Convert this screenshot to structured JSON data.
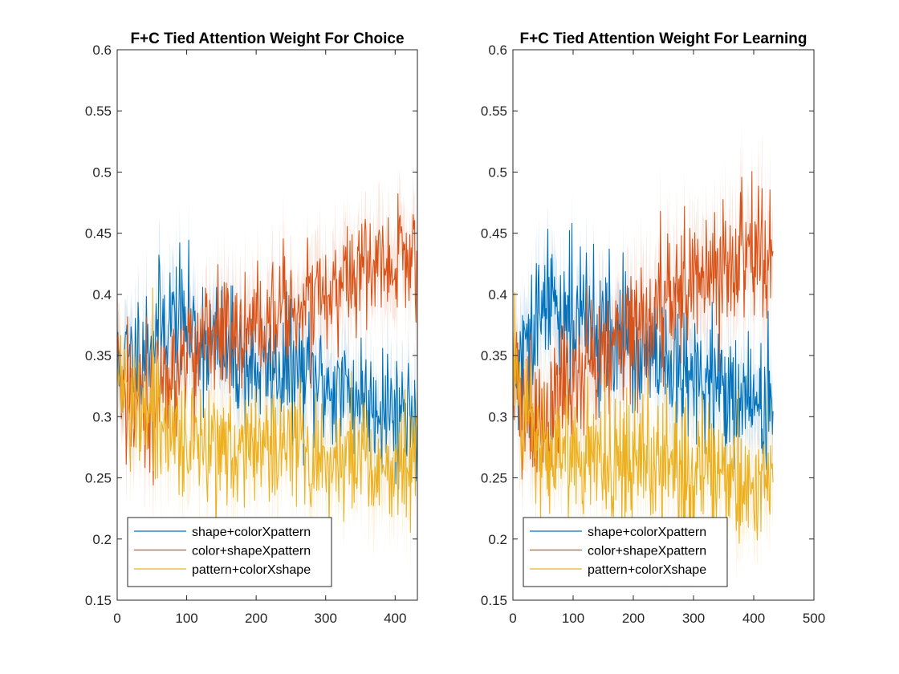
{
  "chart_data": [
    {
      "type": "line",
      "title": "F+C Tied Attention Weight For Choice",
      "xlabel": "",
      "ylabel": "",
      "xlim": [
        0,
        432
      ],
      "ylim": [
        0.15,
        0.6
      ],
      "xticks": [
        0,
        100,
        200,
        300,
        400
      ],
      "yticks": [
        0.15,
        0.2,
        0.25,
        0.3,
        0.35,
        0.4,
        0.45,
        0.5,
        0.55,
        0.6
      ],
      "x_end": 432,
      "grid": false,
      "legend_position": "bottom-left",
      "noise_seed": 11,
      "series": [
        {
          "name": "shape+colorXpattern",
          "color": "#0072BD",
          "noise": 0.026,
          "band": 0.028,
          "x": [
            0,
            10,
            20,
            30,
            40,
            50,
            60,
            70,
            80,
            90,
            100,
            120,
            140,
            160,
            180,
            200,
            220,
            240,
            260,
            280,
            300,
            320,
            340,
            360,
            380,
            400,
            420,
            432
          ],
          "y": [
            0.335,
            0.34,
            0.345,
            0.352,
            0.358,
            0.365,
            0.372,
            0.378,
            0.382,
            0.38,
            0.375,
            0.365,
            0.358,
            0.352,
            0.345,
            0.34,
            0.338,
            0.338,
            0.336,
            0.33,
            0.326,
            0.322,
            0.318,
            0.315,
            0.312,
            0.305,
            0.305,
            0.32
          ]
        },
        {
          "name": "color+shapeXpattern",
          "color": "#D95319",
          "noise": 0.026,
          "band": 0.03,
          "x": [
            0,
            10,
            20,
            30,
            40,
            50,
            60,
            70,
            80,
            90,
            100,
            120,
            140,
            160,
            180,
            200,
            220,
            240,
            260,
            280,
            300,
            320,
            340,
            360,
            380,
            400,
            420,
            432
          ],
          "y": [
            0.34,
            0.33,
            0.32,
            0.315,
            0.312,
            0.315,
            0.32,
            0.328,
            0.335,
            0.342,
            0.35,
            0.36,
            0.368,
            0.372,
            0.378,
            0.382,
            0.385,
            0.39,
            0.392,
            0.398,
            0.405,
            0.41,
            0.412,
            0.418,
            0.425,
            0.43,
            0.425,
            0.43
          ]
        },
        {
          "name": "pattern+colorXshape",
          "color": "#EDB120",
          "noise": 0.024,
          "band": 0.03,
          "x": [
            0,
            10,
            20,
            30,
            40,
            50,
            60,
            70,
            80,
            90,
            100,
            120,
            140,
            160,
            180,
            200,
            220,
            240,
            260,
            280,
            300,
            320,
            340,
            360,
            380,
            400,
            420,
            432
          ],
          "y": [
            0.33,
            0.322,
            0.312,
            0.305,
            0.3,
            0.295,
            0.29,
            0.288,
            0.286,
            0.284,
            0.282,
            0.28,
            0.278,
            0.277,
            0.276,
            0.275,
            0.274,
            0.272,
            0.27,
            0.27,
            0.268,
            0.266,
            0.264,
            0.262,
            0.26,
            0.262,
            0.262,
            0.27
          ]
        }
      ]
    },
    {
      "type": "line",
      "title": "F+C Tied Attention Weight For Learning",
      "xlabel": "",
      "ylabel": "",
      "xlim": [
        0,
        500
      ],
      "ylim": [
        0.15,
        0.6
      ],
      "xticks": [
        0,
        100,
        200,
        300,
        400,
        500
      ],
      "yticks": [
        0.15,
        0.2,
        0.25,
        0.3,
        0.35,
        0.4,
        0.45,
        0.5,
        0.55,
        0.6
      ],
      "x_end": 432,
      "grid": false,
      "legend_position": "bottom-left",
      "noise_seed": 29,
      "series": [
        {
          "name": "shape+colorXpattern",
          "color": "#0072BD",
          "noise": 0.028,
          "band": 0.03,
          "x": [
            0,
            10,
            20,
            30,
            40,
            50,
            60,
            70,
            80,
            90,
            100,
            120,
            140,
            160,
            180,
            200,
            220,
            240,
            260,
            280,
            300,
            320,
            340,
            360,
            380,
            400,
            420,
            432
          ],
          "y": [
            0.33,
            0.335,
            0.345,
            0.36,
            0.375,
            0.385,
            0.392,
            0.395,
            0.392,
            0.388,
            0.383,
            0.378,
            0.372,
            0.368,
            0.362,
            0.355,
            0.348,
            0.342,
            0.338,
            0.333,
            0.33,
            0.326,
            0.322,
            0.318,
            0.315,
            0.312,
            0.31,
            0.3
          ]
        },
        {
          "name": "color+shapeXpattern",
          "color": "#D95319",
          "noise": 0.028,
          "band": 0.035,
          "x": [
            0,
            10,
            20,
            30,
            40,
            50,
            60,
            70,
            80,
            90,
            100,
            120,
            140,
            160,
            180,
            200,
            220,
            240,
            260,
            280,
            300,
            320,
            340,
            360,
            380,
            400,
            420,
            432
          ],
          "y": [
            0.335,
            0.325,
            0.315,
            0.305,
            0.3,
            0.3,
            0.305,
            0.312,
            0.32,
            0.328,
            0.335,
            0.345,
            0.352,
            0.36,
            0.368,
            0.375,
            0.385,
            0.395,
            0.402,
            0.408,
            0.412,
            0.418,
            0.422,
            0.428,
            0.435,
            0.44,
            0.438,
            0.44
          ]
        },
        {
          "name": "pattern+colorXshape",
          "color": "#EDB120",
          "noise": 0.026,
          "band": 0.032,
          "x": [
            0,
            10,
            20,
            30,
            40,
            50,
            60,
            70,
            80,
            90,
            100,
            120,
            140,
            160,
            180,
            200,
            220,
            240,
            260,
            280,
            300,
            320,
            340,
            360,
            380,
            400,
            420,
            432
          ],
          "y": [
            0.34,
            0.325,
            0.31,
            0.298,
            0.29,
            0.285,
            0.28,
            0.276,
            0.272,
            0.27,
            0.268,
            0.266,
            0.265,
            0.264,
            0.262,
            0.262,
            0.261,
            0.26,
            0.258,
            0.257,
            0.255,
            0.254,
            0.252,
            0.25,
            0.248,
            0.246,
            0.245,
            0.255
          ]
        }
      ]
    }
  ]
}
